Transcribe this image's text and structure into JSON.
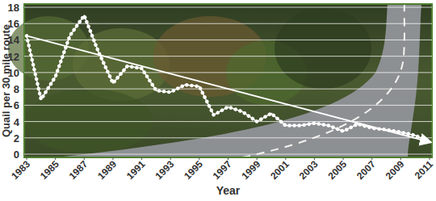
{
  "chart_data": {
    "type": "line",
    "x_label": "Year",
    "y_label": "Quail per 30 mile route",
    "x": [
      1983,
      1984,
      1985,
      1986,
      1987,
      1988,
      1989,
      1990,
      1991,
      1992,
      1993,
      1994,
      1995,
      1996,
      1997,
      1998,
      1999,
      2000,
      2001,
      2002,
      2003,
      2004,
      2005,
      2006,
      2007,
      2008,
      2009,
      2010,
      2011
    ],
    "series": [
      {
        "color": "#ffffff",
        "line_style": "dotted",
        "marker": "none",
        "values": [
          14.5,
          6.7,
          9.5,
          14.5,
          17,
          12.5,
          8.7,
          10.8,
          10.5,
          7.8,
          7.6,
          8.5,
          8.3,
          4.8,
          5.8,
          5.2,
          4.0,
          5.0,
          3.5,
          3.5,
          3.8,
          3.5,
          2.8,
          3.7,
          3.2,
          3.0,
          2.7,
          2.3,
          1.5
        ]
      },
      {
        "color": "#ffffff",
        "line_style": "solid",
        "marker": "arrow",
        "x": [
          1983,
          2011
        ],
        "values": [
          14.5,
          1.5
        ]
      }
    ],
    "xlim": [
      1983,
      2011
    ],
    "xticks": [
      1983,
      1985,
      1987,
      1989,
      1991,
      1993,
      1995,
      1997,
      1999,
      2001,
      2003,
      2005,
      2007,
      2009,
      2011
    ],
    "ylim": [
      0,
      18
    ],
    "yticks": [
      0,
      2,
      4,
      6,
      8,
      10,
      12,
      14,
      16,
      18
    ],
    "grid": true
  }
}
